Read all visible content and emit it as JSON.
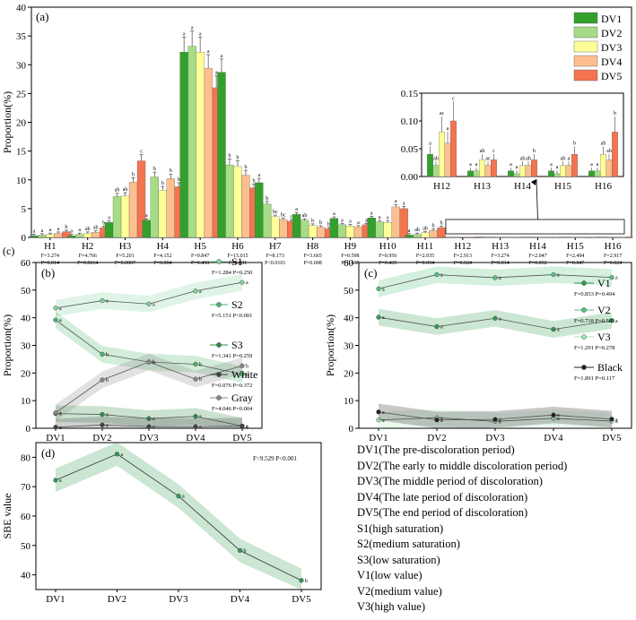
{
  "chart_data": [
    {
      "panel": "(a)",
      "type": "bar",
      "ylabel": "Proportion(%)",
      "ylim": [
        0,
        40
      ],
      "yticks": [
        0,
        5,
        10,
        15,
        20,
        25,
        30,
        35,
        40
      ],
      "categories": [
        "H1",
        "H2",
        "H3",
        "H4",
        "H5",
        "H6",
        "H7",
        "H8",
        "H9",
        "H10",
        "H11",
        "H12",
        "H13",
        "H14",
        "H15",
        "H16"
      ],
      "colors": [
        "#33a02c",
        "#a6dc86",
        "#ffff99",
        "#fdbf8f",
        "#f4744f"
      ],
      "series": [
        {
          "name": "DV1",
          "values": [
            0.3,
            0.3,
            2.6,
            3.0,
            32.2,
            28.7,
            9.5,
            4.0,
            3.3,
            3.4,
            0.4,
            0.04,
            0.01,
            0.01,
            0.01,
            0.01
          ]
        },
        {
          "name": "DV2",
          "values": [
            0.4,
            0.5,
            7.1,
            10.5,
            33.2,
            12.6,
            5.8,
            3.0,
            2.2,
            2.7,
            0.5,
            0.02,
            0.01,
            0.005,
            0.005,
            0.01
          ]
        },
        {
          "name": "DV3",
          "values": [
            0.5,
            0.7,
            7.2,
            8.2,
            32.2,
            12.3,
            3.6,
            2.1,
            2.0,
            2.6,
            0.8,
            0.08,
            0.03,
            0.02,
            0.02,
            0.04
          ]
        },
        {
          "name": "DV4",
          "values": [
            0.7,
            0.9,
            9.6,
            10.2,
            29.4,
            10.8,
            3.1,
            1.8,
            1.8,
            5.3,
            1.2,
            0.06,
            0.02,
            0.02,
            0.02,
            0.03
          ]
        },
        {
          "name": "DV5",
          "values": [
            1.0,
            1.7,
            13.3,
            8.8,
            26.0,
            8.6,
            2.8,
            1.5,
            2.2,
            5.0,
            1.7,
            0.1,
            0.03,
            0.03,
            0.04,
            0.08
          ]
        }
      ],
      "letters": [
        [
          "a",
          "a",
          "a",
          "a",
          "b"
        ],
        [
          "a",
          "a",
          "ab",
          "ab",
          "b"
        ],
        [
          "a",
          "ab",
          "ab",
          "b",
          "c"
        ],
        [
          "a",
          "b",
          "b",
          "b",
          "b"
        ],
        [
          "a",
          "a",
          "a",
          "a",
          "a"
        ],
        [
          "a",
          "b",
          "b",
          "b",
          "b"
        ],
        [
          "a",
          "b",
          "bc",
          "bc",
          "c"
        ],
        [
          "a",
          "ab",
          "b",
          "b",
          "b"
        ],
        [
          "a",
          "a",
          "a",
          "a",
          "a"
        ],
        [
          "a",
          "a",
          "a",
          "a",
          "a"
        ],
        [
          "a",
          "ab",
          "ab",
          "b",
          "b"
        ]
      ],
      "stats": [
        [
          "F=3.274",
          "P=0.014"
        ],
        [
          "F=4.766",
          "P=0.0014"
        ],
        [
          "F=5.201",
          "P=0.0007"
        ],
        [
          "F=4.152",
          "P=0.004"
        ],
        [
          "F=0.847",
          "P=0.498"
        ],
        [
          "F=15.015",
          "P<0.001"
        ],
        [
          "F=8.173",
          "P<0.0101"
        ],
        [
          "F=3.665",
          "P=0.008"
        ],
        [
          "F=0.598",
          "P=0.665"
        ],
        [
          "F=0.956",
          "P=0.435"
        ],
        [
          "F=2.035",
          "P=0.094"
        ],
        [
          "F=2.913",
          "P=0.024"
        ],
        [
          "F=3.274",
          "P=0.014"
        ],
        [
          "F=2.047",
          "P=0.092"
        ],
        [
          "F=2.494",
          "P=0.047"
        ],
        [
          "F=2.917",
          "P=0.024"
        ]
      ],
      "inset": {
        "categories": [
          "H12",
          "H13",
          "H14",
          "H15",
          "H16"
        ],
        "ylim": [
          0,
          0.15
        ],
        "yticks": [
          "0.00",
          "0.05",
          "0.10",
          "0.15"
        ],
        "letters": [
          [
            "a",
            "ab",
            "ac",
            "a",
            "c"
          ],
          [
            "a",
            "a",
            "ab",
            "ac",
            "c"
          ],
          [
            "a",
            "a",
            "ab",
            "ab",
            "b"
          ],
          [
            "a",
            "a",
            "ab",
            "a",
            "b"
          ],
          [
            "a",
            "a",
            "ab",
            "ab",
            "b"
          ]
        ]
      }
    },
    {
      "panel": "(b)",
      "type": "line",
      "ylabel": "Proportion(%)",
      "ylim": [
        0,
        60
      ],
      "yticks": [
        0,
        10,
        20,
        30,
        40,
        50,
        60
      ],
      "categories": [
        "DV1",
        "DV2",
        "DV3",
        "DV4",
        "DV5"
      ],
      "series": [
        {
          "name": "S1",
          "stat": "F=1.284  P=0.250",
          "color": "#7fd49a",
          "values": [
            43.5,
            46.2,
            45.0,
            49.7,
            52.8
          ],
          "letters": [
            "a",
            "a",
            "a",
            "a",
            "a"
          ]
        },
        {
          "name": "S2",
          "stat": "F=5.151  P<0.001",
          "color": "#4bb76b",
          "values": [
            39.2,
            26.8,
            24.0,
            23.2,
            19.5
          ],
          "letters": [
            "a",
            "b",
            "b",
            "b",
            "b"
          ]
        },
        {
          "name": "S3",
          "stat": "F=1.341  P=0.259",
          "color": "#2e8b45",
          "values": [
            5.3,
            5.0,
            3.5,
            4.3,
            0.8
          ],
          "letters": [
            "a",
            "a",
            "a",
            "a",
            "a"
          ]
        },
        {
          "name": "White",
          "stat": "F=0.076  P=0.372",
          "color": "#444444",
          "values": [
            0.4,
            1.2,
            0.6,
            0.6,
            0.8
          ],
          "letters": [
            "a",
            "a",
            "a",
            "a",
            "a"
          ]
        },
        {
          "name": "Gray",
          "stat": "F=4.046  P=0.004",
          "color": "#888888",
          "values": [
            5.6,
            17.5,
            24.0,
            17.8,
            22.6
          ],
          "letters": [
            "a",
            "b",
            "b",
            "b",
            "b"
          ]
        }
      ]
    },
    {
      "panel": "(c)",
      "type": "line",
      "ylabel": "Proportion(%)",
      "ylim": [
        0,
        60
      ],
      "yticks": [
        0,
        10,
        20,
        30,
        40,
        50,
        60
      ],
      "categories": [
        "DV1",
        "DV2",
        "DV3",
        "DV4",
        "DV5"
      ],
      "series": [
        {
          "name": "V1",
          "stat": "F=0.853  P=0.494",
          "color": "#2f9b4e",
          "values": [
            40.2,
            36.8,
            39.8,
            35.8,
            39.0
          ],
          "letters": [
            "a",
            "a",
            "a",
            "a",
            "a"
          ]
        },
        {
          "name": "V2",
          "stat": "F=0.718  P=0.581",
          "color": "#55c27a",
          "values": [
            50.5,
            55.6,
            54.5,
            55.6,
            54.6
          ],
          "letters": [
            "a",
            "a",
            "a",
            "a",
            "a"
          ]
        },
        {
          "name": "V3",
          "stat": "F=1.291  P=0.278",
          "color": "#a3e6b7",
          "values": [
            3.0,
            3.8,
            2.5,
            3.6,
            2.6
          ],
          "letters": [
            "a",
            "a",
            "a",
            "a",
            "a"
          ]
        },
        {
          "name": "Black",
          "stat": "F=1.891  P=0.117",
          "color": "#222222",
          "values": [
            5.9,
            3.0,
            3.2,
            4.8,
            3.3
          ],
          "letters": [
            "a",
            "a",
            "a",
            "a",
            "a"
          ]
        }
      ]
    },
    {
      "panel": "(d)",
      "type": "line",
      "ylabel": "SBE value",
      "ylim": [
        35,
        85
      ],
      "yticks": [
        40,
        50,
        60,
        70,
        80
      ],
      "stat": "F=9.529   P<0.001",
      "categories": [
        "DV1",
        "DV2",
        "DV3",
        "DV4",
        "DV5"
      ],
      "series": [
        {
          "name": "SBE",
          "color": "#2f9b4e",
          "values": [
            72.2,
            81.1,
            66.8,
            48.3,
            38.1
          ],
          "letters": [
            "a",
            "a",
            "a",
            "b",
            "b"
          ]
        }
      ]
    }
  ],
  "figure_labels": {
    "stray_c": "(c)"
  },
  "legend_text": [
    "DV1(The pre-discoloration period)",
    "DV2(The early to middle  discoloration period)",
    "DV3(The middle period of discoloration)",
    "DV4(The late period of discoloration)",
    "DV5(The end period of discoloration)",
    "S1(high saturation)",
    "S2(medium saturation)",
    "S3(low saturation)",
    "V1(low value)",
    "V2(medium value)",
    "V3(high value)"
  ]
}
